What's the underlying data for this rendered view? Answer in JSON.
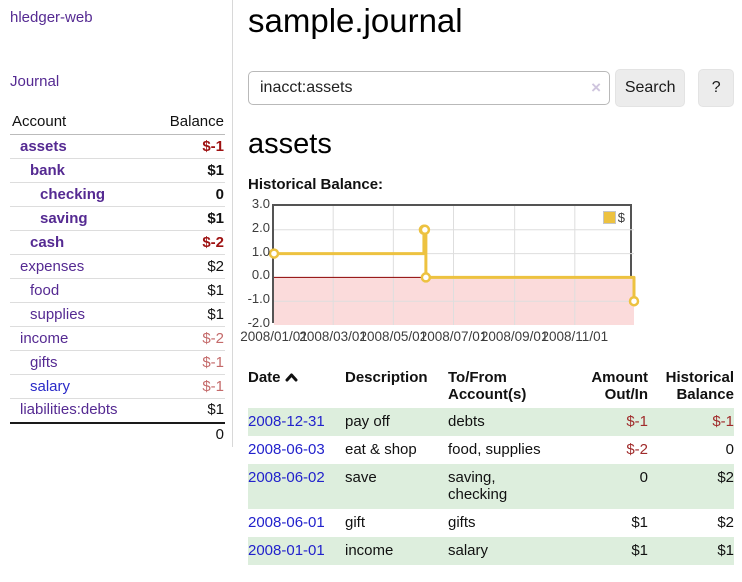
{
  "app": {
    "brand": "hledger-web",
    "nav": {
      "journal_label": "Journal"
    }
  },
  "sidebar": {
    "header": {
      "account": "Account",
      "balance": "Balance"
    },
    "accounts": [
      {
        "name": "assets",
        "balance": "$-1",
        "indent": 1,
        "bold": true,
        "name_color": "purple",
        "balance_style": "neg-strong"
      },
      {
        "name": "bank",
        "balance": "$1",
        "indent": 2,
        "bold": true,
        "name_color": "purple",
        "balance_style": "normal"
      },
      {
        "name": "checking",
        "balance": "0",
        "indent": 3,
        "bold": true,
        "name_color": "purple",
        "balance_style": "normal"
      },
      {
        "name": "saving",
        "balance": "$1",
        "indent": 3,
        "bold": true,
        "name_color": "purple",
        "balance_style": "normal"
      },
      {
        "name": "cash",
        "balance": "$-2",
        "indent": 2,
        "bold": true,
        "name_color": "purple",
        "balance_style": "neg-strong"
      },
      {
        "name": "expenses",
        "balance": "$2",
        "indent": 1,
        "bold": false,
        "name_color": "purple",
        "balance_style": "normal"
      },
      {
        "name": "food",
        "balance": "$1",
        "indent": 2,
        "bold": false,
        "name_color": "purple",
        "balance_style": "normal"
      },
      {
        "name": "supplies",
        "balance": "$1",
        "indent": 2,
        "bold": false,
        "name_color": "purple",
        "balance_style": "normal"
      },
      {
        "name": "income",
        "balance": "$-2",
        "indent": 1,
        "bold": false,
        "name_color": "purple",
        "balance_style": "neg-muted"
      },
      {
        "name": "gifts",
        "balance": "$-1",
        "indent": 2,
        "bold": false,
        "name_color": "purple",
        "balance_style": "neg-muted"
      },
      {
        "name": "salary",
        "balance": "$-1",
        "indent": 2,
        "bold": false,
        "name_color": "blue",
        "balance_style": "neg-muted"
      },
      {
        "name": "liabilities:debts",
        "balance": "$1",
        "indent": 1,
        "bold": false,
        "name_color": "purple",
        "balance_style": "normal"
      }
    ],
    "total": "0"
  },
  "header": {
    "title": "sample.journal"
  },
  "search": {
    "value": "inacct:assets",
    "clear_icon": "×",
    "search_label": "Search",
    "help_label": "?"
  },
  "account_page": {
    "heading": "assets",
    "chart_label": "Historical Balance:"
  },
  "chart_data": {
    "type": "line",
    "title": "Historical Balance",
    "steps": true,
    "series": [
      {
        "name": "$",
        "color": "#edc240",
        "points": [
          {
            "date": "2008-01-01",
            "value": 1
          },
          {
            "date": "2008-06-01",
            "value": 2
          },
          {
            "date": "2008-06-02",
            "value": 2
          },
          {
            "date": "2008-06-03",
            "value": 0
          },
          {
            "date": "2008-12-31",
            "value": -1
          }
        ]
      }
    ],
    "xlim": [
      "2008-01-01",
      "2008-12-31"
    ],
    "ylim": [
      -2,
      3
    ],
    "y_ticks": [
      "3.0",
      "2.0",
      "1.0",
      "0.0",
      "-1.0",
      "-2.0"
    ],
    "x_ticks": [
      "2008/01/01",
      "2008/03/01",
      "2008/05/01",
      "2008/07/01",
      "2008/09/01",
      "2008/11/01"
    ],
    "legend": {
      "label": "$",
      "position": "top-right"
    },
    "grid": true,
    "negative_region": true
  },
  "transactions": {
    "columns": {
      "date": "Date",
      "description": "Description",
      "accounts": "To/From Account(s)",
      "amount": "Amount Out/In",
      "balance": "Historical Balance"
    },
    "sort": {
      "column": "date",
      "icon": "chevron-up"
    },
    "rows": [
      {
        "date": "2008-12-31",
        "description": "pay off",
        "accounts": "debts",
        "amount": "$-1",
        "balance": "$-1",
        "amount_neg": true,
        "balance_neg": true
      },
      {
        "date": "2008-06-03",
        "description": "eat & shop",
        "accounts": "food, supplies",
        "amount": "$-2",
        "balance": "0",
        "amount_neg": true,
        "balance_neg": false
      },
      {
        "date": "2008-06-02",
        "description": "save",
        "accounts": "saving, checking",
        "amount": "0",
        "balance": "$2",
        "amount_neg": false,
        "balance_neg": false
      },
      {
        "date": "2008-06-01",
        "description": "gift",
        "accounts": "gifts",
        "amount": "$1",
        "balance": "$2",
        "amount_neg": false,
        "balance_neg": false
      },
      {
        "date": "2008-01-01",
        "description": "income",
        "accounts": "salary",
        "amount": "$1",
        "balance": "$1",
        "amount_neg": false,
        "balance_neg": false
      }
    ]
  },
  "colors": {
    "accent_purple": "#552a92",
    "link_blue": "#2a2ac8",
    "date_link_blue": "#2222cc",
    "negative_strong": "#9e1111",
    "negative_muted": "#c46a6a",
    "table_negative": "#a02b2b",
    "row_green": "#ddeedd",
    "series_gold": "#edc240",
    "zero_line": "#8b0000",
    "negative_region": "#fbdbdb",
    "gridline": "#dedede",
    "plot_border": "#545454"
  }
}
